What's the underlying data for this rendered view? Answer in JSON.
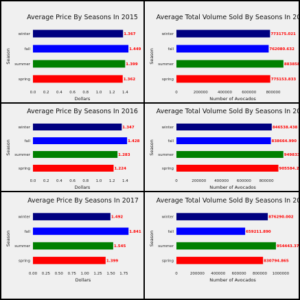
{
  "chart_data": [
    {
      "type": "bar",
      "orientation": "horizontal",
      "title": "Average Price By Seasons In 2015",
      "xlabel": "Dollars",
      "ylabel": "Season",
      "categories": [
        "winter",
        "fall",
        "summer",
        "spring"
      ],
      "values": [
        1.367,
        1.449,
        1.399,
        1.362
      ],
      "value_labels": [
        "1.367",
        "1.449",
        "1.399",
        "1.362"
      ],
      "colors": [
        "#000080",
        "#0000ff",
        "#008000",
        "#ff0000"
      ],
      "xlim": [
        0,
        1.5
      ],
      "xticks": [
        0.0,
        0.2,
        0.4,
        0.6,
        0.8,
        1.0,
        1.2,
        1.4
      ],
      "xtick_labels": [
        "0.0",
        "0.2",
        "0.4",
        "0.6",
        "0.8",
        "1.0",
        "1.2",
        "1.4"
      ]
    },
    {
      "type": "bar",
      "orientation": "horizontal",
      "title": "Average Total Volume Sold By Seasons In 2015",
      "xlabel": "Number of Avocados",
      "ylabel": "Season",
      "categories": [
        "winter",
        "fall",
        "summer",
        "spring"
      ],
      "values": [
        773175.021,
        762080.632,
        883858.203,
        775153.833
      ],
      "value_labels": [
        "773175.021",
        "762080.632",
        "883858.203",
        "775153.833"
      ],
      "colors": [
        "#000080",
        "#0000ff",
        "#008000",
        "#ff0000"
      ],
      "xlim": [
        0,
        930000
      ],
      "xticks": [
        0,
        200000,
        400000,
        600000,
        800000
      ],
      "xtick_labels": [
        "0",
        "200000",
        "400000",
        "600000",
        "800000"
      ]
    },
    {
      "type": "bar",
      "orientation": "horizontal",
      "title": "Average Price By Seasons In 2016",
      "xlabel": "Dollars",
      "ylabel": "Season",
      "categories": [
        "winter",
        "fall",
        "summer",
        "spring"
      ],
      "values": [
        1.347,
        1.428,
        1.283,
        1.224
      ],
      "value_labels": [
        "1.347",
        "1.428",
        "1.283",
        "1.224"
      ],
      "colors": [
        "#000080",
        "#0000ff",
        "#008000",
        "#ff0000"
      ],
      "xlim": [
        0,
        1.5
      ],
      "xticks": [
        0.0,
        0.2,
        0.4,
        0.6,
        0.8,
        1.0,
        1.2,
        1.4
      ],
      "xtick_labels": [
        "0.0",
        "0.2",
        "0.4",
        "0.6",
        "0.8",
        "1.0",
        "1.2",
        "1.4"
      ]
    },
    {
      "type": "bar",
      "orientation": "horizontal",
      "title": "Average Total Volume Sold By Seasons In 2016",
      "xlabel": "Number of Avocados",
      "ylabel": "Season",
      "categories": [
        "winter",
        "fall",
        "summer",
        "spring"
      ],
      "values": [
        846538.438,
        838664.99,
        949833.69,
        905584.278
      ],
      "value_labels": [
        "846538.438",
        "838664.990",
        "949833.690",
        "905584.278"
      ],
      "colors": [
        "#000080",
        "#0000ff",
        "#008000",
        "#ff0000"
      ],
      "xlim": [
        0,
        1000000
      ],
      "xticks": [
        0,
        200000,
        400000,
        600000,
        800000
      ],
      "xtick_labels": [
        "0",
        "200000",
        "400000",
        "600000",
        "800000"
      ]
    },
    {
      "type": "bar",
      "orientation": "horizontal",
      "title": "Average Price By Seasons In 2017",
      "xlabel": "Dollars",
      "ylabel": "Season",
      "categories": [
        "winter",
        "fall",
        "summer",
        "spring"
      ],
      "values": [
        1.492,
        1.841,
        1.545,
        1.399
      ],
      "value_labels": [
        "1.492",
        "1.841",
        "1.545",
        "1.399"
      ],
      "colors": [
        "#000080",
        "#0000ff",
        "#008000",
        "#ff0000"
      ],
      "xlim": [
        0,
        1.93
      ],
      "xticks": [
        0.0,
        0.25,
        0.5,
        0.75,
        1.0,
        1.25,
        1.5,
        1.75
      ],
      "xtick_labels": [
        "0.00",
        "0.25",
        "0.50",
        "0.75",
        "1.00",
        "1.25",
        "1.50",
        "1.75"
      ]
    },
    {
      "type": "bar",
      "orientation": "horizontal",
      "title": "Average Total Volume Sold By Seasons In 2017",
      "xlabel": "Number of Avocados",
      "ylabel": "Season",
      "categories": [
        "winter",
        "fall",
        "summer",
        "spring"
      ],
      "values": [
        876290.002,
        659211.89,
        954443.374,
        830794.865
      ],
      "value_labels": [
        "876290.002",
        "659211.890",
        "954443.374",
        "830794.865"
      ],
      "colors": [
        "#000080",
        "#0000ff",
        "#008000",
        "#ff0000"
      ],
      "xlim": [
        0,
        1080000
      ],
      "xticks": [
        0,
        200000,
        400000,
        600000,
        800000,
        1000000
      ],
      "xtick_labels": [
        "0",
        "200000",
        "400000",
        "600000",
        "800000",
        "1000000"
      ]
    }
  ]
}
